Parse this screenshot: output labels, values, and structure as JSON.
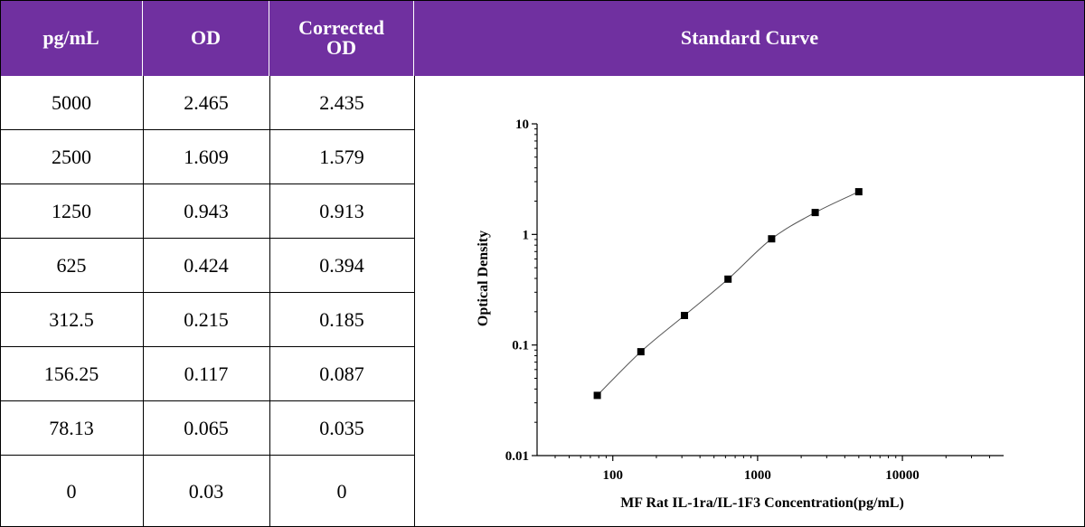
{
  "table": {
    "headers": {
      "concentration": "pg/mL",
      "od": "OD",
      "corrected_od": "Corrected OD",
      "curve": "Standard Curve"
    },
    "rows": [
      {
        "conc": "5000",
        "od": "2.465",
        "corr": "2.435"
      },
      {
        "conc": "2500",
        "od": "1.609",
        "corr": "1.579"
      },
      {
        "conc": "1250",
        "od": "0.943",
        "corr": "0.913"
      },
      {
        "conc": "625",
        "od": "0.424",
        "corr": "0.394"
      },
      {
        "conc": "312.5",
        "od": "0.215",
        "corr": "0.185"
      },
      {
        "conc": "156.25",
        "od": "0.117",
        "corr": "0.087"
      },
      {
        "conc": "78.13",
        "od": "0.065",
        "corr": "0.035"
      },
      {
        "conc": "0",
        "od": "0.03",
        "corr": "0"
      }
    ]
  },
  "colors": {
    "header_bg": "#7030a0",
    "header_text": "#ffffff",
    "marker": "#000000"
  },
  "chart_data": {
    "type": "scatter",
    "x_scale": "log",
    "y_scale": "log",
    "xlabel": "MF Rat IL-1ra/IL-1F3 Concentration(pg/mL)",
    "ylabel": "Optical Density",
    "xlim": [
      30,
      50000
    ],
    "ylim": [
      0.01,
      10
    ],
    "x_ticks": [
      "100",
      "1000",
      "10000"
    ],
    "y_ticks": [
      "0.01",
      "0.1",
      "1",
      "10"
    ],
    "grid": false,
    "series": [
      {
        "x": [
          78.13,
          156.25,
          312.5,
          625,
          1250,
          2500,
          5000
        ],
        "y": [
          0.035,
          0.087,
          0.185,
          0.394,
          0.913,
          1.579,
          2.435
        ],
        "marker": "square",
        "fit_curve": true
      }
    ]
  }
}
